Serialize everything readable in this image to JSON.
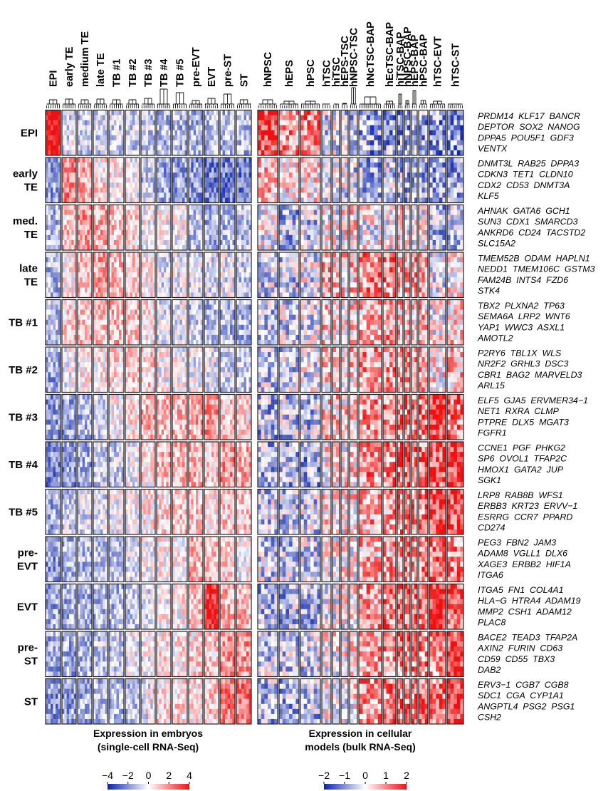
{
  "chart_data": {
    "type": "heatmap",
    "panels": [
      {
        "id": "embryo",
        "columns": [
          "EPI",
          "early TE",
          "medium TE",
          "late TE",
          "TB #1",
          "TB #2",
          "TB #3",
          "TB #4",
          "TB #5",
          "pre-EVT",
          "EVT",
          "pre-ST",
          "ST"
        ],
        "caption": [
          "Expression in embryos",
          "(single-cell RNA-Seq)"
        ],
        "colorbar": {
          "ticks": [
            "−4",
            "−2",
            "0",
            "2",
            "4"
          ],
          "range": [
            -4,
            4
          ]
        }
      },
      {
        "id": "cellular",
        "columns": [
          "hNPSC",
          "hEPS",
          "hPSC",
          "hTSC",
          "hiTSC",
          "hEPS-TSC",
          "hNPSC-TSC",
          "hNcTSC-BAP",
          "hEcTSC-BAP",
          "hiTSC-BAP",
          "hNPSC-BAP",
          "hEPS-BAP",
          "hPSC-BAP",
          "hTSC-EVT",
          "hTSC-ST"
        ],
        "caption": [
          "Expression in cellular",
          "models (bulk RNA-Seq)"
        ],
        "colorbar": {
          "ticks": [
            "−2",
            "−1",
            "0",
            "1",
            "2"
          ],
          "range": [
            -2,
            2
          ]
        }
      }
    ],
    "row_groups": [
      {
        "label": [
          "EPI"
        ],
        "genes": [
          "PRDM14  KLF17  BANCR",
          "DEPTOR  SOX2  NANOG",
          "DPPA5  POU5F1  GDF3",
          "VENTX"
        ]
      },
      {
        "label": [
          "early",
          "TE"
        ],
        "genes": [
          "DNMT3L  RAB25  DPPA3",
          "CDKN3  TET1  CLDN10",
          "CDX2  CD53  DNMT3A",
          "KLF5"
        ]
      },
      {
        "label": [
          "med.",
          "TE"
        ],
        "genes": [
          "AHNAK  GATA6  GCH1",
          "SUN3  CDX1  SMARCD3",
          "ANKRD6  CD24  TACSTD2",
          "SLC15A2"
        ]
      },
      {
        "label": [
          "late",
          "TE"
        ],
        "genes": [
          "TMEM52B  ODAM  HAPLN1",
          "NEDD1  TMEM106C  GSTM3",
          "FAM24B  INTS4  FZD6",
          "STK4"
        ]
      },
      {
        "label": [
          "TB #1"
        ],
        "genes": [
          "TBX2  PLXNA2  TP63",
          "SEMA6A  LRP2  WNT6",
          "YAP1  WWC3  ASXL1",
          "AMOTL2"
        ]
      },
      {
        "label": [
          "TB #2"
        ],
        "genes": [
          "P2RY6  TBL1X  WLS",
          "NR2F2  GRHL3  DSC3",
          "CBR1  BAG2  MARVELD3",
          "ARL15"
        ]
      },
      {
        "label": [
          "TB #3"
        ],
        "genes": [
          "ELF5  GJA5  ERVMER34−1",
          "NET1  RXRA  CLMP",
          "PTPRE  DLX5  MGAT3",
          "FGFR1"
        ]
      },
      {
        "label": [
          "TB #4"
        ],
        "genes": [
          "CCNE1  PGF  PHKG2",
          "SP6  OVOL1  TFAP2C",
          "HMOX1  GATA2  JUP",
          "SGK1"
        ]
      },
      {
        "label": [
          "TB #5"
        ],
        "genes": [
          "LRP8  RAB8B  WFS1",
          "ERBB3  KRT23  ERVV−1",
          "ESRRG  CCR7  PPARD",
          "CD274"
        ]
      },
      {
        "label": [
          "pre-",
          "EVT"
        ],
        "genes": [
          "PEG3  FBN2  JAM3",
          "ADAM8  VGLL1  DLX6",
          "XAGE3  ERBB2  HIF1A",
          "ITGA6"
        ]
      },
      {
        "label": [
          "EVT"
        ],
        "genes": [
          "ITGA5  FN1  COL4A1",
          "HLA−G  HTRA4  ADAM19",
          "MMP2  CSH1  ADAM12",
          "PLAC8"
        ]
      },
      {
        "label": [
          "pre-",
          "ST"
        ],
        "genes": [
          "BACE2  TEAD3  TFAP2A",
          "AXIN2  FURIN  CD63",
          "CD59  CD55  TBX3",
          "DAB2"
        ]
      },
      {
        "label": [
          "ST"
        ],
        "genes": [
          "ERV3−1  CGB7  CGB8",
          "SDC1  CGA  CYP1A1",
          "ANGPTL4  PSG2  PSG1",
          "CSH2"
        ]
      }
    ],
    "colormap": {
      "low": "#0b24a8",
      "mid": "#ffffff",
      "high": "#ee1111"
    },
    "embryo_cells": [
      [
        [
          1.0,
          -0.1,
          -0.2,
          -0.2,
          -0.2,
          -0.2,
          -0.2,
          -0.3,
          -0.3,
          -0.3,
          -0.3,
          -0.3,
          -0.3
        ]
      ],
      [
        [
          -0.4,
          0.55,
          0.35,
          0.15,
          0.05,
          0.0,
          -0.2,
          -0.4,
          -0.4,
          -0.45,
          -0.55,
          -0.6,
          -0.55
        ]
      ],
      [
        [
          -0.3,
          0.25,
          0.45,
          0.35,
          0.25,
          0.15,
          0.0,
          0.0,
          0.0,
          -0.25,
          -0.35,
          -0.3,
          -0.25
        ]
      ],
      [
        [
          -0.3,
          0.05,
          0.25,
          0.4,
          0.25,
          0.15,
          0.05,
          -0.15,
          -0.1,
          -0.1,
          -0.15,
          -0.1,
          -0.25
        ]
      ],
      [
        [
          -0.25,
          0.15,
          0.25,
          0.25,
          0.3,
          0.25,
          0.1,
          -0.1,
          -0.1,
          -0.2,
          -0.3,
          -0.3,
          -0.35
        ]
      ],
      [
        [
          -0.4,
          -0.05,
          0.05,
          0.1,
          0.15,
          0.25,
          0.2,
          0.0,
          0.0,
          -0.05,
          -0.1,
          -0.2,
          -0.25
        ]
      ],
      [
        [
          -0.45,
          -0.35,
          -0.3,
          -0.15,
          0.0,
          0.1,
          0.3,
          0.3,
          0.3,
          0.35,
          0.45,
          0.2,
          0.15
        ]
      ],
      [
        [
          -0.5,
          -0.45,
          -0.35,
          -0.2,
          -0.2,
          -0.05,
          0.1,
          0.3,
          0.25,
          0.3,
          0.2,
          0.45,
          0.35
        ]
      ],
      [
        [
          -0.35,
          -0.2,
          -0.15,
          -0.15,
          -0.05,
          0.0,
          0.1,
          0.15,
          0.25,
          0.2,
          0.1,
          0.2,
          0.25
        ]
      ],
      [
        [
          -0.45,
          -0.35,
          -0.3,
          -0.25,
          -0.2,
          -0.1,
          0.0,
          0.05,
          0.05,
          0.35,
          0.3,
          0.15,
          0.0
        ]
      ],
      [
        [
          -0.4,
          -0.35,
          -0.3,
          -0.3,
          -0.3,
          -0.25,
          -0.1,
          0.0,
          0.05,
          0.25,
          0.85,
          0.3,
          0.3
        ]
      ],
      [
        [
          -0.4,
          -0.35,
          -0.3,
          -0.25,
          -0.2,
          -0.1,
          0.0,
          0.1,
          0.1,
          0.15,
          0.25,
          0.45,
          0.45
        ]
      ],
      [
        [
          -0.45,
          -0.4,
          -0.35,
          -0.3,
          -0.3,
          -0.25,
          -0.1,
          0.1,
          0.15,
          0.1,
          0.2,
          0.55,
          0.6
        ]
      ]
    ],
    "cellular_cells": [
      [
        0.85,
        0.4,
        0.5,
        -0.2,
        -0.1,
        -0.2,
        -0.3,
        -0.4,
        -0.4,
        -0.4,
        -0.4,
        -0.4,
        -0.4,
        -0.45,
        -0.45
      ],
      [
        0.3,
        0.1,
        0.1,
        -0.15,
        -0.1,
        -0.1,
        -0.2,
        -0.35,
        -0.2,
        -0.3,
        -0.3,
        -0.3,
        -0.3,
        -0.35,
        -0.4
      ],
      [
        0.0,
        -0.3,
        -0.2,
        0.0,
        0.0,
        0.1,
        0.15,
        0.0,
        0.0,
        0.1,
        0.0,
        0.0,
        0.0,
        -0.3,
        -0.2
      ],
      [
        -0.2,
        -0.2,
        -0.1,
        0.3,
        0.2,
        0.2,
        0.25,
        0.45,
        0.5,
        0.4,
        0.35,
        0.35,
        0.35,
        -0.1,
        0.1
      ],
      [
        -0.2,
        -0.15,
        -0.1,
        0.2,
        0.15,
        0.15,
        0.2,
        0.35,
        0.4,
        0.3,
        0.3,
        0.3,
        0.3,
        0.0,
        0.2
      ],
      [
        -0.2,
        -0.2,
        -0.1,
        0.2,
        0.15,
        0.15,
        0.2,
        0.4,
        0.4,
        0.35,
        0.35,
        0.3,
        0.3,
        0.1,
        0.3
      ],
      [
        -0.3,
        -0.25,
        -0.25,
        0.2,
        0.2,
        0.15,
        0.25,
        0.4,
        0.45,
        0.5,
        0.5,
        0.45,
        0.5,
        0.85,
        0.6
      ],
      [
        -0.3,
        -0.3,
        -0.35,
        0.1,
        0.15,
        0.1,
        0.15,
        0.45,
        0.5,
        0.6,
        0.6,
        0.55,
        0.6,
        0.7,
        0.8
      ],
      [
        -0.2,
        -0.2,
        -0.2,
        0.1,
        0.15,
        0.1,
        0.15,
        0.35,
        0.4,
        0.5,
        0.5,
        0.45,
        0.5,
        0.75,
        0.75
      ],
      [
        -0.2,
        -0.2,
        -0.2,
        0.05,
        0.05,
        0.1,
        0.1,
        0.3,
        0.35,
        0.45,
        0.45,
        0.4,
        0.45,
        0.6,
        0.5
      ],
      [
        -0.3,
        -0.3,
        -0.3,
        0.0,
        0.0,
        0.0,
        0.05,
        0.4,
        0.5,
        0.6,
        0.6,
        0.55,
        0.6,
        0.9,
        0.7
      ],
      [
        -0.2,
        -0.2,
        -0.2,
        0.05,
        0.05,
        0.05,
        0.1,
        0.35,
        0.4,
        0.5,
        0.5,
        0.45,
        0.5,
        0.55,
        0.85
      ],
      [
        -0.3,
        -0.3,
        -0.3,
        0.0,
        0.0,
        0.0,
        0.05,
        0.4,
        0.5,
        0.6,
        0.6,
        0.55,
        0.6,
        0.5,
        0.9
      ]
    ]
  }
}
